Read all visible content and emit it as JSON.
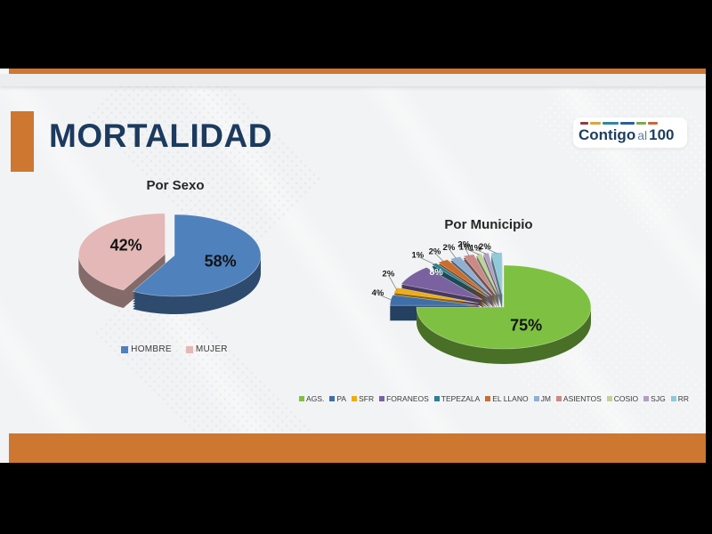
{
  "frame": {
    "bg": "#000000"
  },
  "slide": {
    "bg": "#F2F3F4",
    "accent_orange": "#CE7730",
    "title": "MORTALIDAD",
    "title_color": "#1C3A5E"
  },
  "logo": {
    "word1": "Contigo",
    "word2": "al",
    "word3": "100",
    "text_color": "#1D3E5F",
    "mid_color": "#64809B",
    "accent_color": "#D98A3D",
    "dashes": [
      {
        "color": "#8E3B40",
        "w": 9
      },
      {
        "color": "#DFA33C",
        "w": 12
      },
      {
        "color": "#2E86A8",
        "w": 18
      },
      {
        "color": "#2B5F9E",
        "w": 16
      },
      {
        "color": "#7EA94F",
        "w": 11
      },
      {
        "color": "#C9683B",
        "w": 11
      }
    ]
  },
  "chart_data": [
    {
      "type": "pie",
      "title": "Por Sexo",
      "categories": [
        "HOMBRE",
        "MUJER"
      ],
      "values": [
        58,
        42
      ],
      "unit": "%",
      "colors": [
        "#4F81BD",
        "#E3B8B7"
      ],
      "legend_position": "bottom",
      "style": "3d-exploded"
    },
    {
      "type": "pie",
      "title": "Por Municipio",
      "categories": [
        "AGS.",
        "PA",
        "SFR",
        "FORANEOS",
        "TEPEZALA",
        "EL LLANO",
        "JM",
        "ASIENTOS",
        "COSIO",
        "SJG",
        "RR"
      ],
      "values": [
        75,
        4,
        2,
        8,
        1,
        2,
        2,
        2,
        1,
        1,
        2
      ],
      "unit": "%",
      "colors": [
        "#7EC142",
        "#3F6FA8",
        "#EFAD15",
        "#7A62A0",
        "#2E7F93",
        "#CC6D2B",
        "#8FAFD4",
        "#C98A88",
        "#BFD398",
        "#AFA0C4",
        "#8FC9DA"
      ],
      "inside_label_colors": {
        "FORANEOS": "#FFFFFF"
      },
      "legend_position": "bottom",
      "style": "3d-exploded"
    }
  ]
}
